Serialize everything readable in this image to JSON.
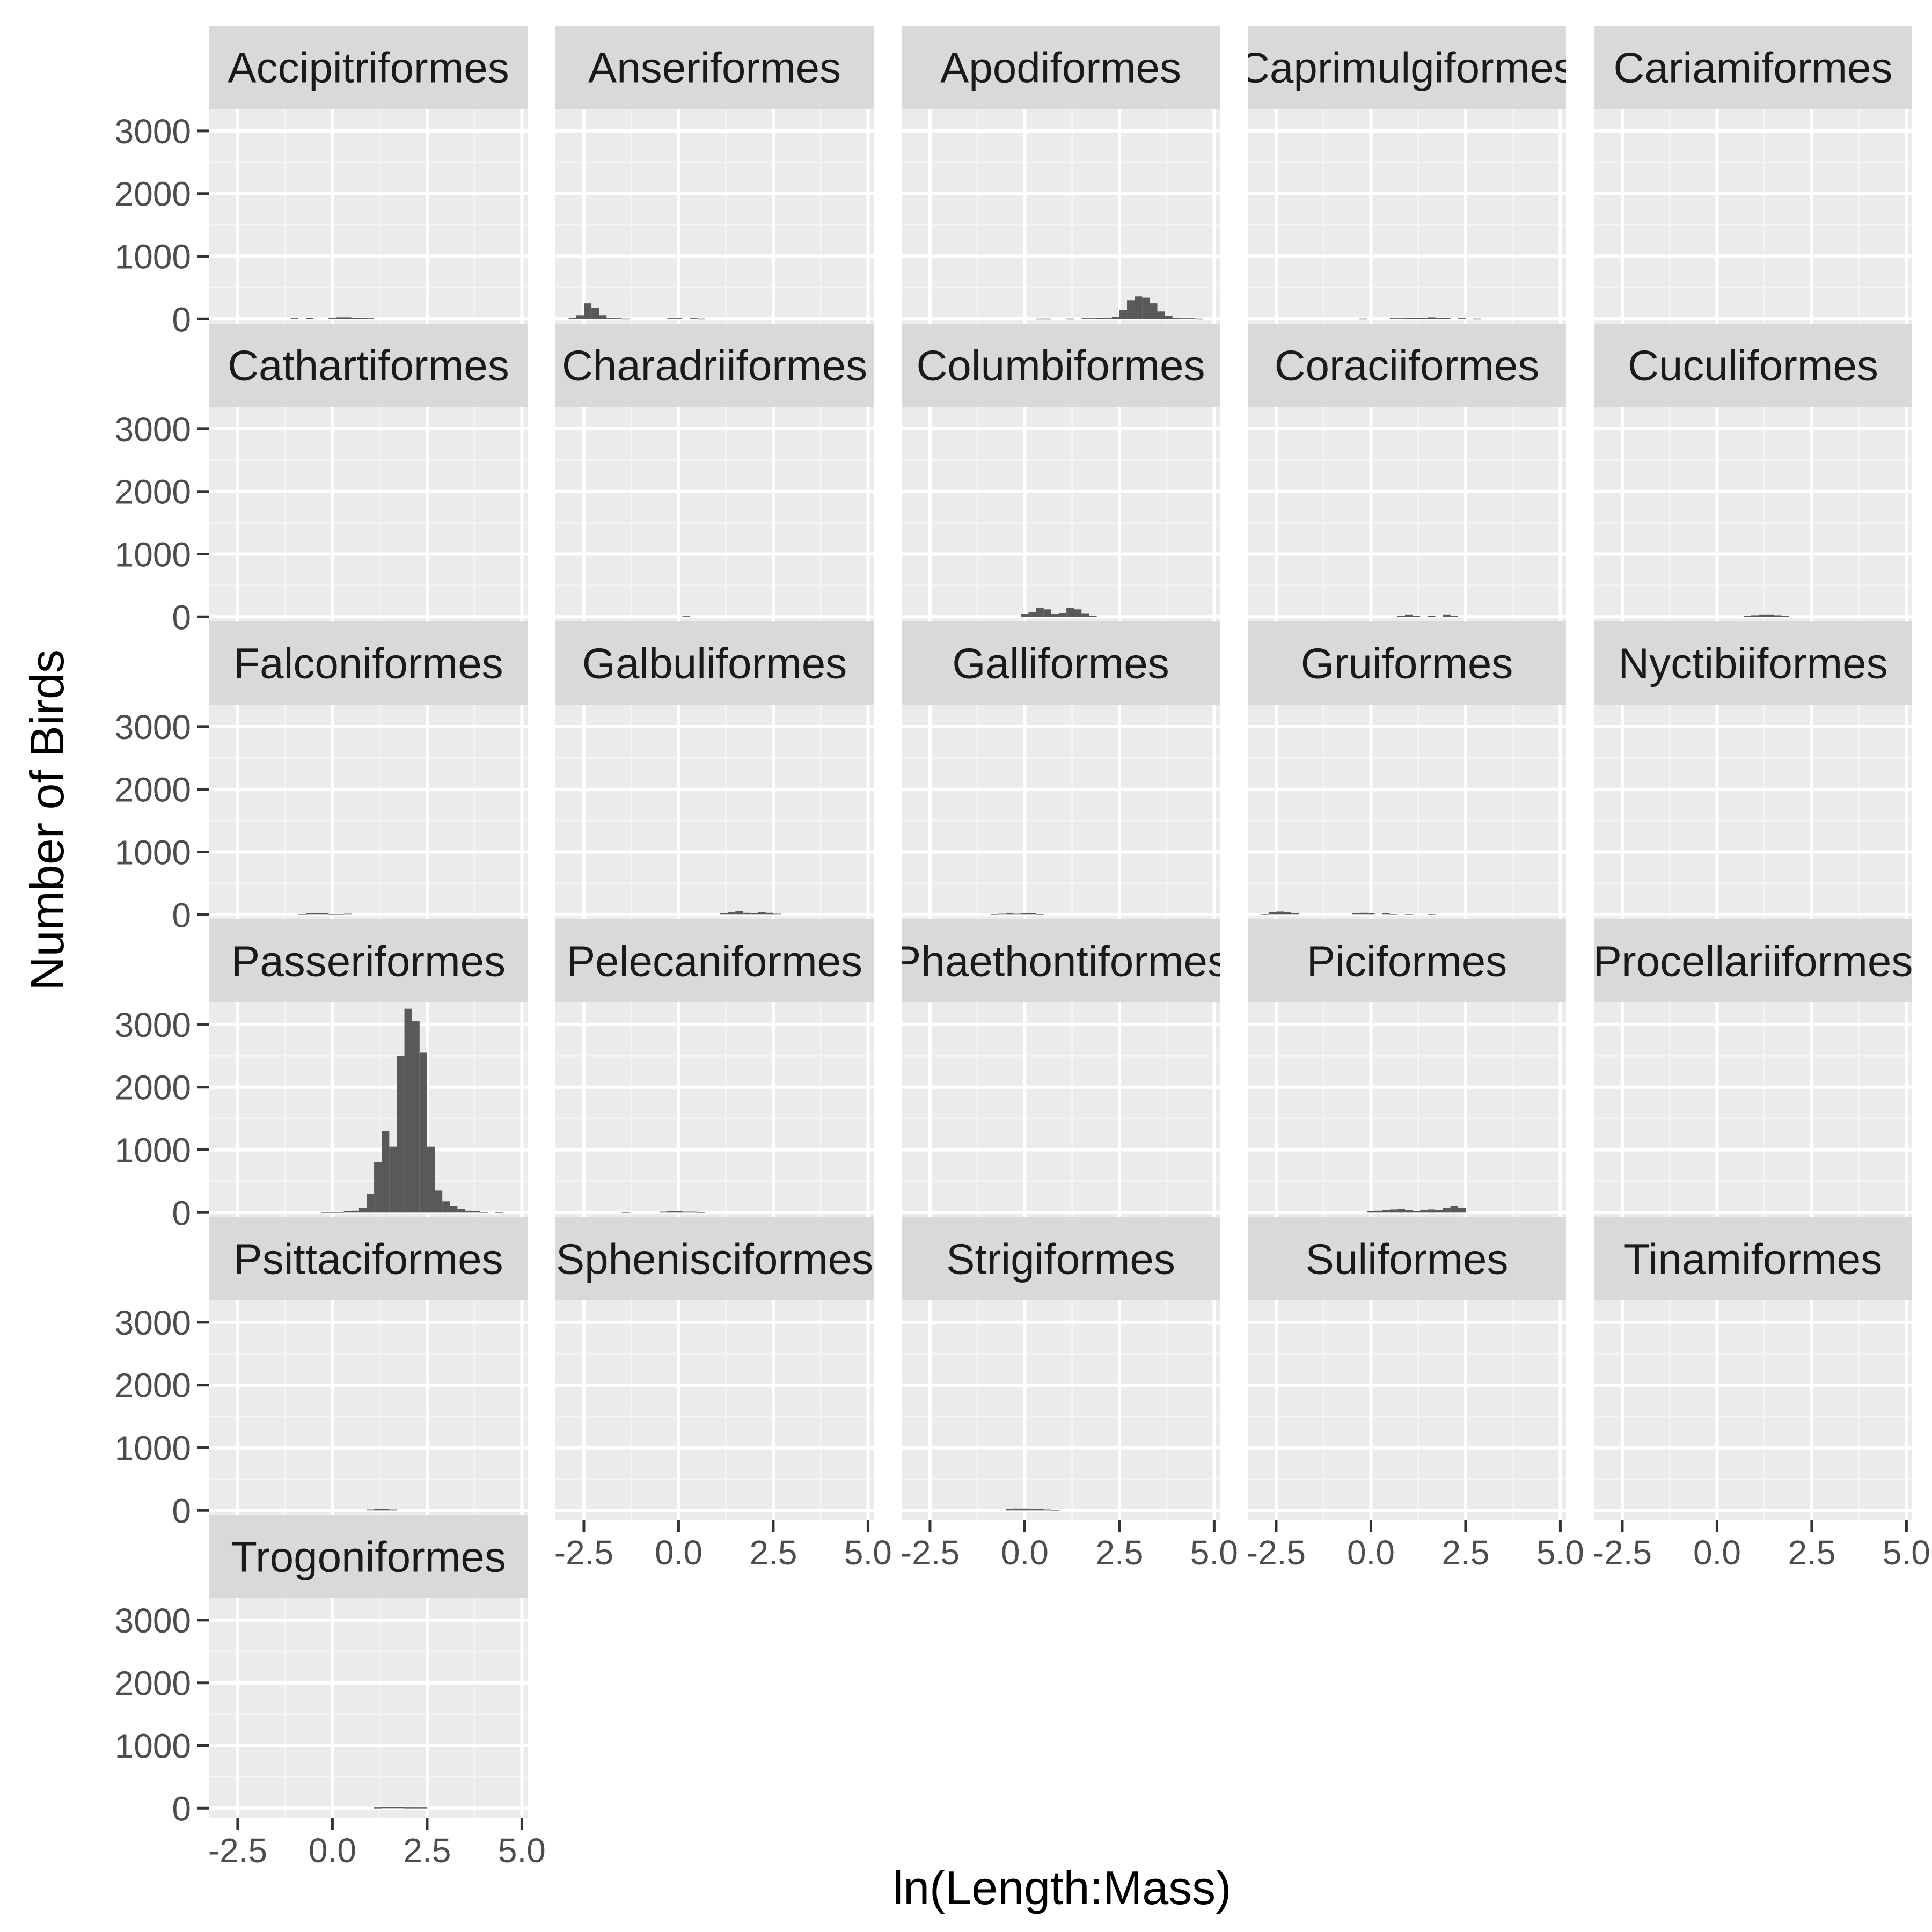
{
  "chart_data": {
    "type": "bar",
    "subtype": "faceted-histogram",
    "xlabel": "ln(Length:Mass)",
    "ylabel": "Number of Birds",
    "xlim": [
      -3.25,
      5.15
    ],
    "ylim": [
      -160,
      3350
    ],
    "x_ticks": [
      -2.5,
      0.0,
      2.5,
      5.0
    ],
    "x_tick_labels": [
      "-2.5",
      "0.0",
      "2.5",
      "5.0"
    ],
    "y_ticks": [
      0,
      1000,
      2000,
      3000
    ],
    "y_tick_labels": [
      "0",
      "1000",
      "2000",
      "3000"
    ],
    "bin_width": 0.2,
    "facet_columns": 5,
    "colors": {
      "panel_background": "#ebebeb",
      "grid_major": "#ffffff",
      "grid_minor": "#f4f4f4",
      "strip_background": "#d9d9d9",
      "bar_fill": "#595959"
    },
    "facets": [
      {
        "title": "Accipitriformes",
        "bins": [
          [
            -1.0,
            10
          ],
          [
            -0.6,
            15
          ],
          [
            0.0,
            20
          ],
          [
            0.2,
            25
          ],
          [
            0.4,
            25
          ],
          [
            0.6,
            20
          ],
          [
            0.8,
            15
          ],
          [
            1.0,
            10
          ]
        ]
      },
      {
        "title": "Anseriformes",
        "bins": [
          [
            -2.8,
            20
          ],
          [
            -2.6,
            60
          ],
          [
            -2.4,
            250
          ],
          [
            -2.2,
            180
          ],
          [
            -2.0,
            60
          ],
          [
            -1.8,
            15
          ],
          [
            -1.6,
            10
          ],
          [
            -1.4,
            5
          ],
          [
            -0.2,
            10
          ],
          [
            0.0,
            10
          ],
          [
            0.4,
            10
          ],
          [
            0.6,
            5
          ]
        ]
      },
      {
        "title": "Apodiformes",
        "bins": [
          [
            0.4,
            5
          ],
          [
            0.6,
            5
          ],
          [
            1.2,
            5
          ],
          [
            1.6,
            10
          ],
          [
            1.8,
            10
          ],
          [
            2.0,
            15
          ],
          [
            2.2,
            20
          ],
          [
            2.4,
            30
          ],
          [
            2.6,
            140
          ],
          [
            2.8,
            300
          ],
          [
            3.0,
            360
          ],
          [
            3.2,
            340
          ],
          [
            3.4,
            250
          ],
          [
            3.6,
            120
          ],
          [
            3.8,
            50
          ],
          [
            4.0,
            20
          ],
          [
            4.2,
            10
          ],
          [
            4.4,
            10
          ],
          [
            4.6,
            5
          ]
        ]
      },
      {
        "title": "Caprimulgiformes",
        "bins": [
          [
            -0.2,
            5
          ],
          [
            0.6,
            10
          ],
          [
            0.8,
            10
          ],
          [
            1.0,
            15
          ],
          [
            1.2,
            15
          ],
          [
            1.4,
            20
          ],
          [
            1.6,
            25
          ],
          [
            1.8,
            20
          ],
          [
            2.0,
            15
          ],
          [
            2.4,
            10
          ],
          [
            2.8,
            5
          ]
        ]
      },
      {
        "title": "Cariamiformes",
        "bins": []
      },
      {
        "title": "Cathartiformes",
        "bins": []
      },
      {
        "title": "Charadriiformes",
        "bins": [
          [
            0.2,
            10
          ]
        ]
      },
      {
        "title": "Columbiformes",
        "bins": [
          [
            0.0,
            40
          ],
          [
            0.2,
            80
          ],
          [
            0.4,
            140
          ],
          [
            0.6,
            120
          ],
          [
            0.8,
            40
          ],
          [
            1.0,
            60
          ],
          [
            1.2,
            140
          ],
          [
            1.4,
            120
          ],
          [
            1.6,
            50
          ],
          [
            1.8,
            20
          ]
        ]
      },
      {
        "title": "Coraciiformes",
        "bins": [
          [
            0.8,
            20
          ],
          [
            1.0,
            30
          ],
          [
            1.2,
            15
          ],
          [
            1.6,
            20
          ],
          [
            2.0,
            30
          ],
          [
            2.2,
            20
          ]
        ]
      },
      {
        "title": "Cuculiformes",
        "bins": [
          [
            0.8,
            15
          ],
          [
            1.0,
            25
          ],
          [
            1.2,
            30
          ],
          [
            1.4,
            30
          ],
          [
            1.6,
            25
          ],
          [
            1.8,
            15
          ]
        ]
      },
      {
        "title": "Falconiformes",
        "bins": [
          [
            -0.8,
            10
          ],
          [
            -0.6,
            20
          ],
          [
            -0.4,
            25
          ],
          [
            -0.2,
            20
          ],
          [
            0.0,
            10
          ],
          [
            0.2,
            10
          ],
          [
            0.4,
            15
          ]
        ]
      },
      {
        "title": "Galbuliformes",
        "bins": [
          [
            1.2,
            20
          ],
          [
            1.4,
            40
          ],
          [
            1.6,
            60
          ],
          [
            1.8,
            30
          ],
          [
            2.0,
            20
          ],
          [
            2.2,
            40
          ],
          [
            2.4,
            30
          ],
          [
            2.6,
            15
          ]
        ]
      },
      {
        "title": "Galliformes",
        "bins": [
          [
            -0.8,
            10
          ],
          [
            -0.6,
            15
          ],
          [
            -0.4,
            20
          ],
          [
            -0.2,
            15
          ],
          [
            0.0,
            20
          ],
          [
            0.2,
            25
          ],
          [
            0.4,
            10
          ]
        ]
      },
      {
        "title": "Gruiformes",
        "bins": [
          [
            -2.8,
            10
          ],
          [
            -2.6,
            40
          ],
          [
            -2.4,
            50
          ],
          [
            -2.2,
            40
          ],
          [
            -2.0,
            20
          ],
          [
            -0.4,
            20
          ],
          [
            -0.2,
            30
          ],
          [
            0.0,
            20
          ],
          [
            0.4,
            20
          ],
          [
            0.6,
            10
          ],
          [
            1.0,
            10
          ],
          [
            1.6,
            10
          ]
        ]
      },
      {
        "title": "Nyctibiiformes",
        "bins": []
      },
      {
        "title": "Passeriformes",
        "bins": [
          [
            -0.2,
            10
          ],
          [
            0.0,
            10
          ],
          [
            0.2,
            10
          ],
          [
            0.4,
            20
          ],
          [
            0.6,
            30
          ],
          [
            0.8,
            80
          ],
          [
            1.0,
            300
          ],
          [
            1.2,
            800
          ],
          [
            1.4,
            1300
          ],
          [
            1.6,
            1050
          ],
          [
            1.8,
            2500
          ],
          [
            2.0,
            3250
          ],
          [
            2.2,
            3050
          ],
          [
            2.4,
            2550
          ],
          [
            2.6,
            1050
          ],
          [
            2.8,
            350
          ],
          [
            3.0,
            180
          ],
          [
            3.2,
            100
          ],
          [
            3.4,
            60
          ],
          [
            3.6,
            30
          ],
          [
            3.8,
            20
          ],
          [
            4.0,
            10
          ],
          [
            4.4,
            10
          ]
        ]
      },
      {
        "title": "Pelecaniformes",
        "bins": [
          [
            -1.4,
            10
          ],
          [
            -0.4,
            15
          ],
          [
            -0.2,
            20
          ],
          [
            0.0,
            20
          ],
          [
            0.2,
            15
          ],
          [
            0.4,
            15
          ],
          [
            0.6,
            10
          ]
        ]
      },
      {
        "title": "Phaethontiformes",
        "bins": []
      },
      {
        "title": "Piciformes",
        "bins": [
          [
            0.0,
            20
          ],
          [
            0.2,
            30
          ],
          [
            0.4,
            40
          ],
          [
            0.6,
            50
          ],
          [
            0.8,
            60
          ],
          [
            1.0,
            40
          ],
          [
            1.2,
            20
          ],
          [
            1.4,
            40
          ],
          [
            1.6,
            50
          ],
          [
            1.8,
            40
          ],
          [
            2.0,
            80
          ],
          [
            2.2,
            100
          ],
          [
            2.4,
            80
          ]
        ]
      },
      {
        "title": "Procellariiformes",
        "bins": []
      },
      {
        "title": "Psittaciformes",
        "bins": [
          [
            1.0,
            15
          ],
          [
            1.2,
            25
          ],
          [
            1.4,
            20
          ],
          [
            1.6,
            15
          ]
        ]
      },
      {
        "title": "Sphenisciformes",
        "bins": []
      },
      {
        "title": "Strigiformes",
        "bins": [
          [
            -0.4,
            20
          ],
          [
            -0.2,
            30
          ],
          [
            0.0,
            30
          ],
          [
            0.2,
            25
          ],
          [
            0.4,
            20
          ],
          [
            0.6,
            15
          ],
          [
            0.8,
            10
          ]
        ]
      },
      {
        "title": "Suliformes",
        "bins": []
      },
      {
        "title": "Tinamiformes",
        "bins": []
      },
      {
        "title": "Trogoniformes",
        "bins": [
          [
            1.2,
            10
          ],
          [
            1.4,
            15
          ],
          [
            1.6,
            15
          ],
          [
            1.8,
            15
          ],
          [
            2.0,
            10
          ],
          [
            2.2,
            10
          ],
          [
            2.4,
            10
          ]
        ]
      }
    ]
  }
}
